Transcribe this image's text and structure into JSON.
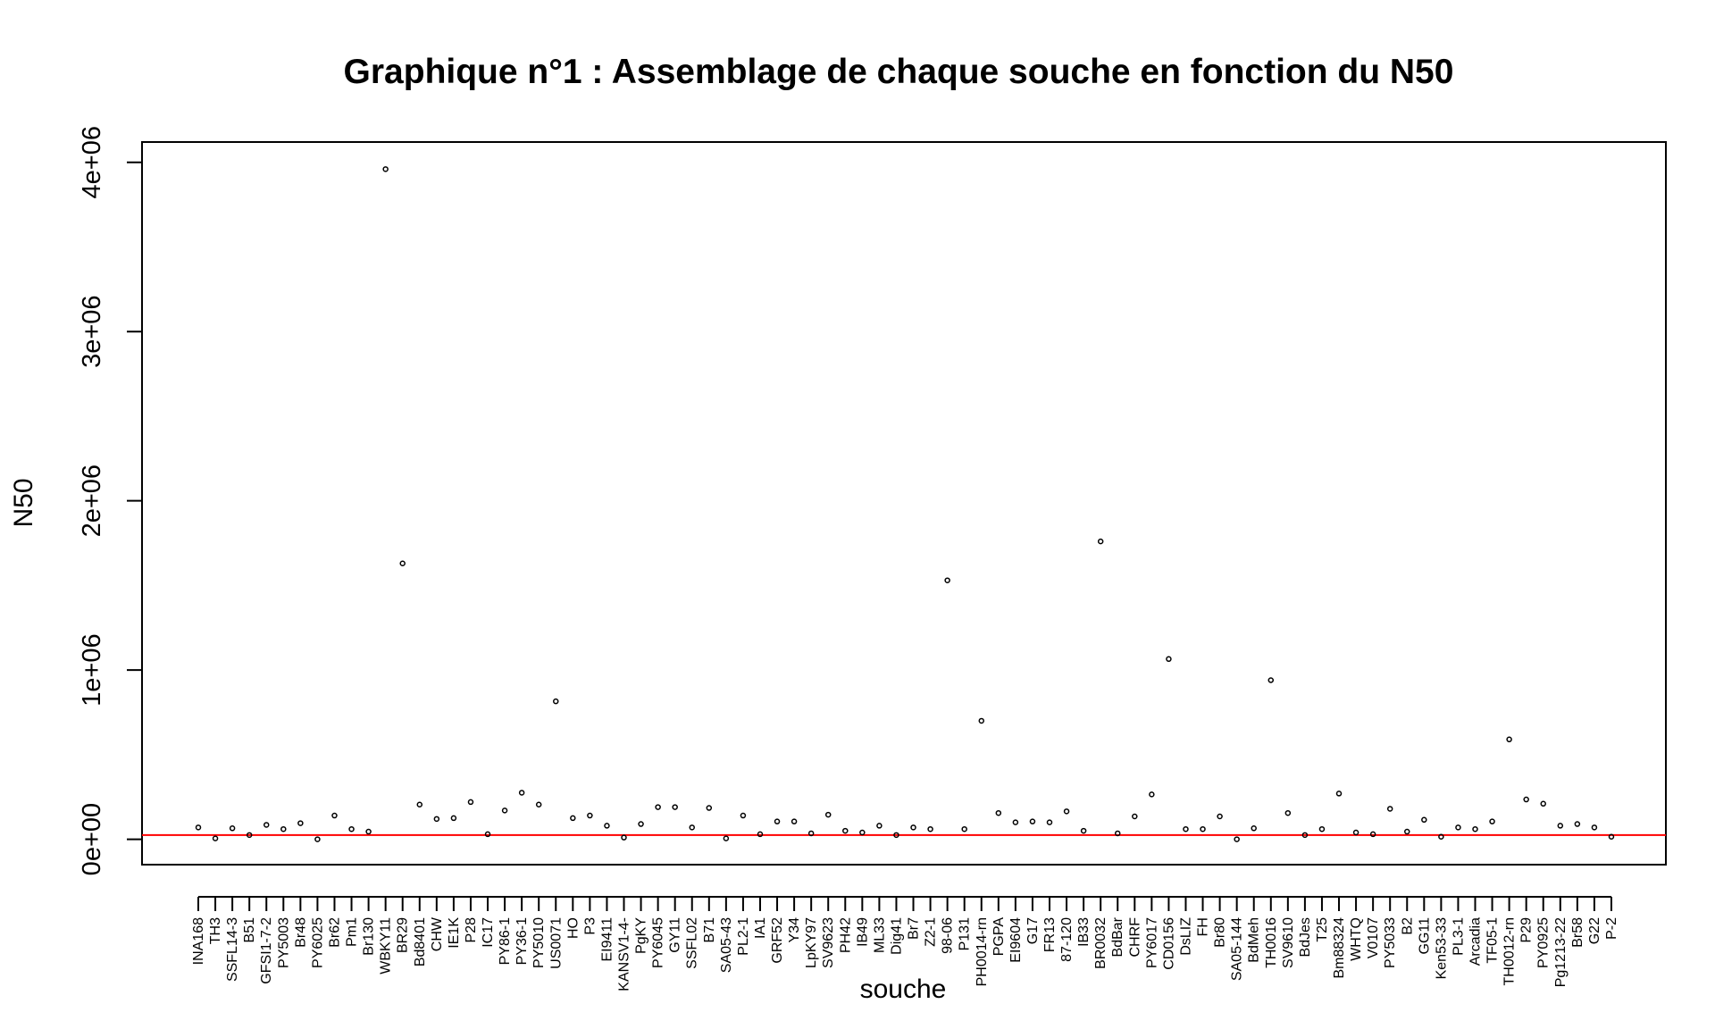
{
  "chart_data": {
    "type": "scatter",
    "title": "Graphique n°1 : Assemblage de chaque souche en fonction du N50",
    "xlabel": "souche",
    "ylabel": "N50",
    "ylim": [
      -150000,
      4120000
    ],
    "yticks": [
      0,
      1000000,
      2000000,
      3000000,
      4000000
    ],
    "ytick_labels": [
      "0e+00",
      "1e+06",
      "2e+06",
      "3e+06",
      "4e+06"
    ],
    "grid": false,
    "point_color": "#000000",
    "hline": {
      "y": 25000,
      "color": "#ff0000"
    },
    "categories": [
      "INA168",
      "TH3",
      "SSFL14-3",
      "B51",
      "GFSI1-7-2",
      "PY5003",
      "Br48",
      "PY6025",
      "Br62",
      "Pm1",
      "Br130",
      "WBKY11",
      "BR29",
      "Bd8401",
      "CHW",
      "IE1K",
      "P28",
      "IC17",
      "PY86-1",
      "PY36-1",
      "PY5010",
      "US0071",
      "HO",
      "P3",
      "EI9411",
      "KANSV1-4-",
      "PgKY",
      "PY6045",
      "GY11",
      "SSFL02",
      "B71",
      "SA05-43",
      "PL2-1",
      "IA1",
      "GRF52",
      "Y34",
      "LpKY97",
      "SV9623",
      "PH42",
      "IB49",
      "ML33",
      "Dig41",
      "Br7",
      "Z2-1",
      "98-06",
      "P131",
      "PH0014-rn",
      "PGPA",
      "EI9604",
      "G17",
      "FR13",
      "87-120",
      "IB33",
      "BR0032",
      "BdBar",
      "CHRF",
      "PY6017",
      "CD0156",
      "DsLIZ",
      "FH",
      "Br80",
      "SA05-144",
      "BdMeh",
      "TH0016",
      "SV9610",
      "BdJes",
      "T25",
      "Bm88324",
      "WHTQ",
      "V0107",
      "PY5033",
      "B2",
      "GG11",
      "Ken53-33",
      "PL3-1",
      "Arcadia",
      "TF05-1",
      "TH0012-rn",
      "P29",
      "PY0925",
      "Pg1213-22",
      "Br58",
      "G22",
      "P-2"
    ],
    "values": [
      70000,
      5000,
      65000,
      25000,
      85000,
      60000,
      95000,
      0,
      140000,
      60000,
      45000,
      3960000,
      1630000,
      205000,
      120000,
      125000,
      220000,
      30000,
      170000,
      275000,
      205000,
      815000,
      125000,
      140000,
      80000,
      10000,
      90000,
      190000,
      190000,
      70000,
      185000,
      5000,
      140000,
      30000,
      105000,
      105000,
      35000,
      145000,
      50000,
      40000,
      80000,
      25000,
      70000,
      60000,
      1530000,
      60000,
      700000,
      155000,
      100000,
      105000,
      100000,
      165000,
      50000,
      1760000,
      35000,
      135000,
      265000,
      1065000,
      60000,
      60000,
      135000,
      0,
      65000,
      940000,
      155000,
      25000,
      60000,
      270000,
      40000,
      30000,
      180000,
      45000,
      115000,
      15000,
      70000,
      60000,
      105000,
      590000,
      235000,
      210000,
      80000,
      90000,
      70000,
      15000
    ]
  }
}
